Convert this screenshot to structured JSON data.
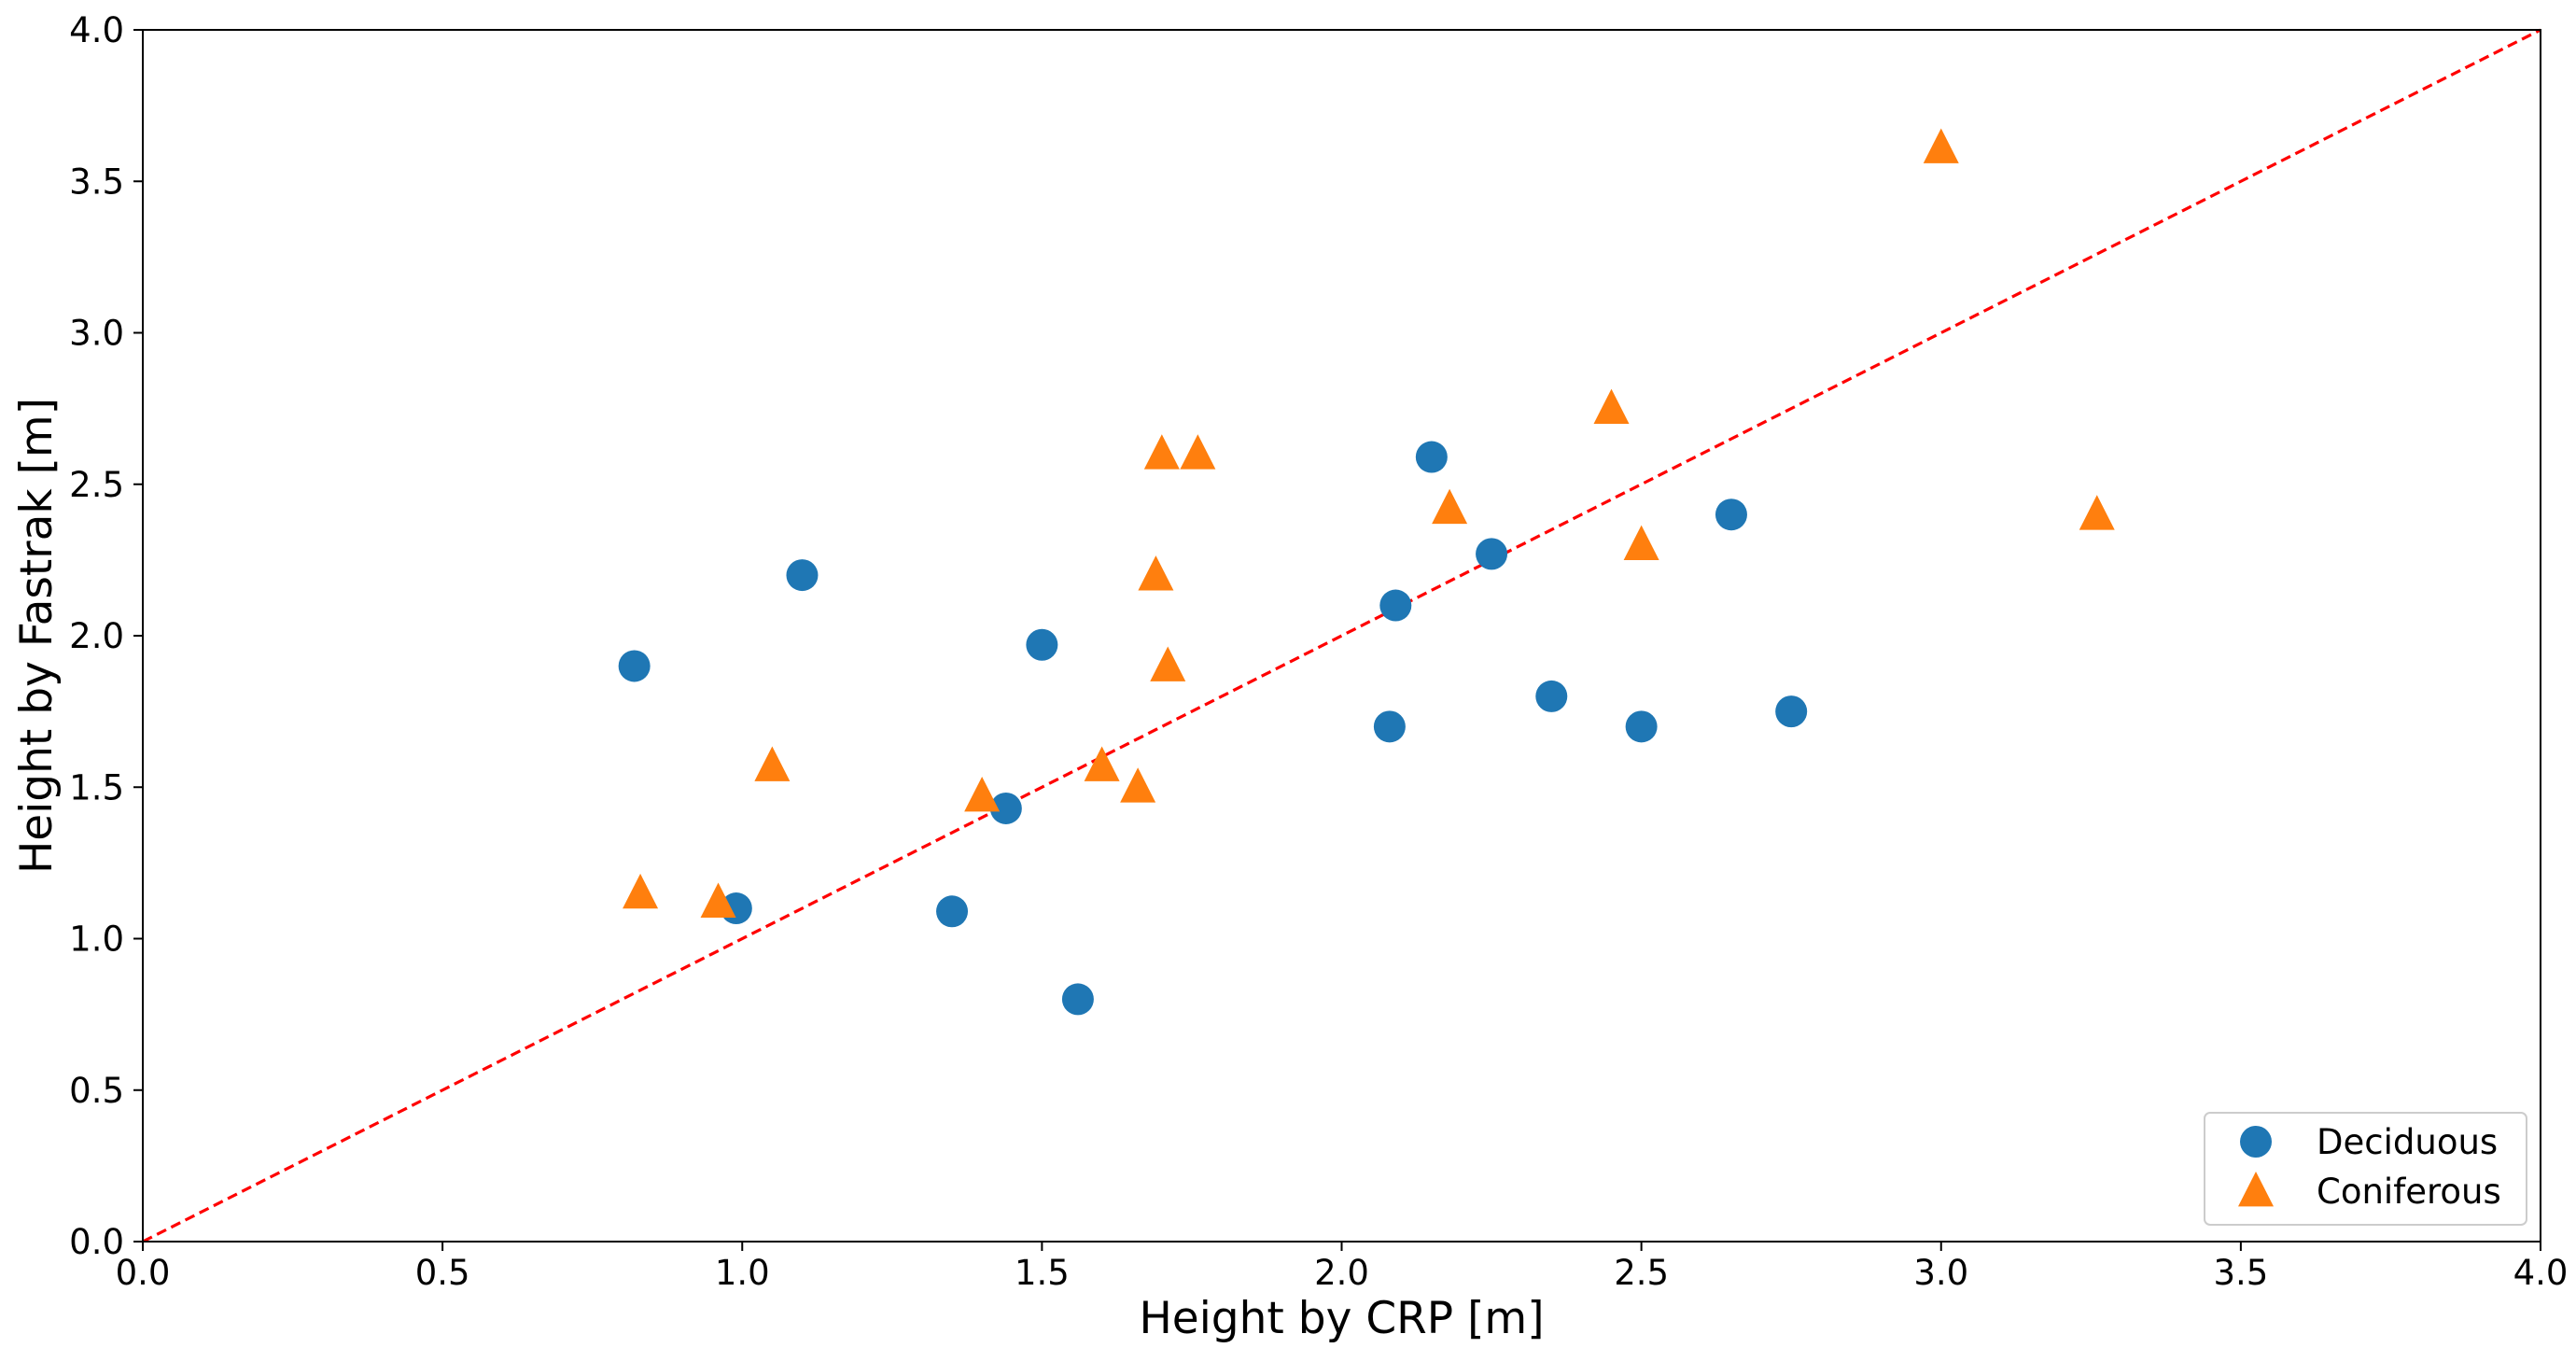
{
  "chart_data": {
    "type": "scatter",
    "title": "",
    "xlabel": "Height by CRP [m]",
    "ylabel": "Height by Fastrak [m]",
    "xlim": [
      0.0,
      4.0
    ],
    "ylim": [
      0.0,
      4.0
    ],
    "xticks": [
      "0.0",
      "0.5",
      "1.0",
      "1.5",
      "2.0",
      "2.5",
      "3.0",
      "3.5",
      "4.0"
    ],
    "yticks": [
      "0.0",
      "0.5",
      "1.0",
      "1.5",
      "2.0",
      "2.5",
      "3.0",
      "3.5",
      "4.0"
    ],
    "grid": false,
    "legend_position": "bottom-right",
    "reference_line": {
      "label": "y = x",
      "from": [
        0.0,
        0.0
      ],
      "to": [
        4.0,
        4.0
      ],
      "color": "#ff0000",
      "style": "dashed"
    },
    "series": [
      {
        "name": "Deciduous",
        "marker": "circle",
        "color": "#1f77b4",
        "points": [
          {
            "x": 0.82,
            "y": 1.9
          },
          {
            "x": 0.99,
            "y": 1.1
          },
          {
            "x": 1.1,
            "y": 2.2
          },
          {
            "x": 1.35,
            "y": 1.09
          },
          {
            "x": 1.44,
            "y": 1.43
          },
          {
            "x": 1.5,
            "y": 1.97
          },
          {
            "x": 1.56,
            "y": 0.8
          },
          {
            "x": 2.08,
            "y": 1.7
          },
          {
            "x": 2.09,
            "y": 2.1
          },
          {
            "x": 2.15,
            "y": 2.59
          },
          {
            "x": 2.25,
            "y": 2.27
          },
          {
            "x": 2.35,
            "y": 1.8
          },
          {
            "x": 2.5,
            "y": 1.7
          },
          {
            "x": 2.65,
            "y": 2.4
          },
          {
            "x": 2.75,
            "y": 1.75
          }
        ]
      },
      {
        "name": "Coniferous",
        "marker": "triangle",
        "color": "#ff7f0e",
        "points": [
          {
            "x": 0.83,
            "y": 1.15
          },
          {
            "x": 0.96,
            "y": 1.12
          },
          {
            "x": 1.05,
            "y": 1.57
          },
          {
            "x": 1.4,
            "y": 1.47
          },
          {
            "x": 1.6,
            "y": 1.57
          },
          {
            "x": 1.66,
            "y": 1.5
          },
          {
            "x": 1.69,
            "y": 2.2
          },
          {
            "x": 1.7,
            "y": 2.6
          },
          {
            "x": 1.71,
            "y": 1.9
          },
          {
            "x": 1.76,
            "y": 2.6
          },
          {
            "x": 2.18,
            "y": 2.42
          },
          {
            "x": 2.45,
            "y": 2.75
          },
          {
            "x": 2.5,
            "y": 2.3
          },
          {
            "x": 3.0,
            "y": 3.61
          },
          {
            "x": 3.26,
            "y": 2.4
          }
        ]
      }
    ]
  }
}
